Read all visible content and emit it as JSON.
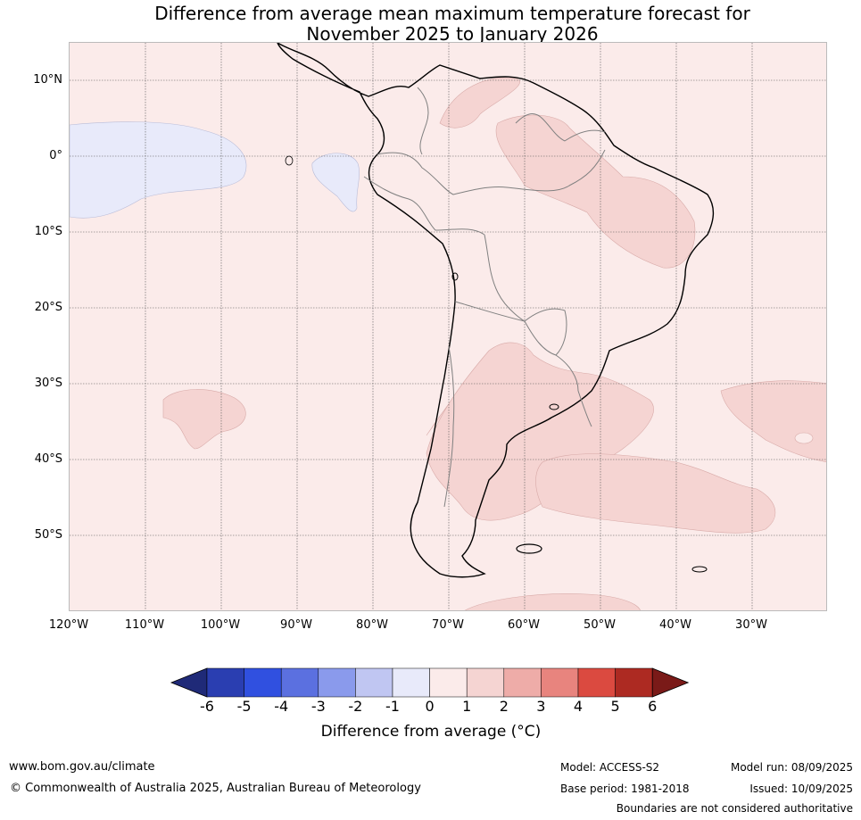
{
  "title_line1": "Difference from average mean maximum temperature forecast for",
  "title_line2": "November 2025 to January 2026",
  "lat_labels": [
    "10°N",
    "0°",
    "10°S",
    "20°S",
    "30°S",
    "40°S",
    "50°S"
  ],
  "lon_labels": [
    "120°W",
    "110°W",
    "100°W",
    "90°W",
    "80°W",
    "70°W",
    "60°W",
    "50°W",
    "40°W",
    "30°W"
  ],
  "colorbar": {
    "ticks": [
      "-6",
      "-5",
      "-4",
      "-3",
      "-2",
      "-1",
      "0",
      "1",
      "2",
      "3",
      "4",
      "5",
      "6"
    ],
    "colors": [
      "#1f2a78",
      "#2a3eb1",
      "#3050e0",
      "#5b70e0",
      "#8a9aec",
      "#c0c6f2",
      "#e8eafa",
      "#fbebea",
      "#f5d4d2",
      "#eeaca8",
      "#e8847e",
      "#db4a40",
      "#ad2a22",
      "#7a1a18"
    ],
    "label": "Difference from average (°C)"
  },
  "map_colors": {
    "background": "#fbebea",
    "warm": "#f5d4d2",
    "cool": "#e8eafa",
    "coast": "#000000",
    "border": "#808080"
  },
  "footer": {
    "website": "www.bom.gov.au/climate",
    "copyright": "© Commonwealth of Australia 2025, Australian Bureau of Meteorology",
    "model": "Model: ACCESS-S2",
    "base_period": "Base period: 1981-2018",
    "model_run": "Model run: 08/09/2025",
    "issued": "Issued: 10/09/2025",
    "disclaimer": "Boundaries are not considered authoritative"
  }
}
